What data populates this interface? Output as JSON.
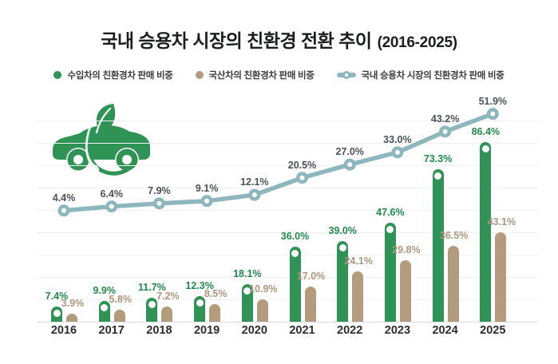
{
  "title": {
    "main": "국내 승용차 시장의 친환경 전환 추이",
    "range": "(2016-2025)"
  },
  "legend": {
    "items": [
      {
        "label": "수입차의 친환경차 판매 비중",
        "marker": "dot",
        "color": "#2e9355"
      },
      {
        "label": "국산차의 친환경차 판매 비중",
        "marker": "dot",
        "color": "#b39b7d"
      },
      {
        "label": "국내 승용차 시장의 친환경차 판매 비중",
        "marker": "line-dot",
        "color": "#8db7bd"
      }
    ]
  },
  "icons": {
    "car": "eco-leaf-car-icon"
  },
  "chart_data": {
    "type": "bar+line",
    "unit": "%",
    "categories": [
      "2016",
      "2017",
      "2018",
      "2019",
      "2020",
      "2021",
      "2022",
      "2023",
      "2024",
      "2025"
    ],
    "series": [
      {
        "name": "수입차의 친환경차 판매 비중",
        "type": "bar",
        "color": "#2e9355",
        "label_color": "#218a4b",
        "values": [
          7.4,
          9.9,
          11.7,
          12.3,
          18.1,
          36.0,
          39.0,
          47.6,
          73.3,
          86.4
        ]
      },
      {
        "name": "국산차의 친환경차 판매 비중",
        "type": "bar",
        "color": "#b39b7d",
        "label_color": "#ac977c",
        "values": [
          3.9,
          5.8,
          7.2,
          8.5,
          10.9,
          17.0,
          24.1,
          29.8,
          36.5,
          43.1
        ]
      },
      {
        "name": "국내 승용차 시장의 친환경차 판매 비중",
        "type": "line",
        "color": "#8db7bd",
        "label_color": "#4a5257",
        "values": [
          4.4,
          6.4,
          7.9,
          9.1,
          12.1,
          20.5,
          27.0,
          33.0,
          43.2,
          51.9
        ]
      }
    ],
    "ylim": [
      0,
      100
    ],
    "grid": true,
    "legend_position": "top",
    "value_labels": true
  }
}
